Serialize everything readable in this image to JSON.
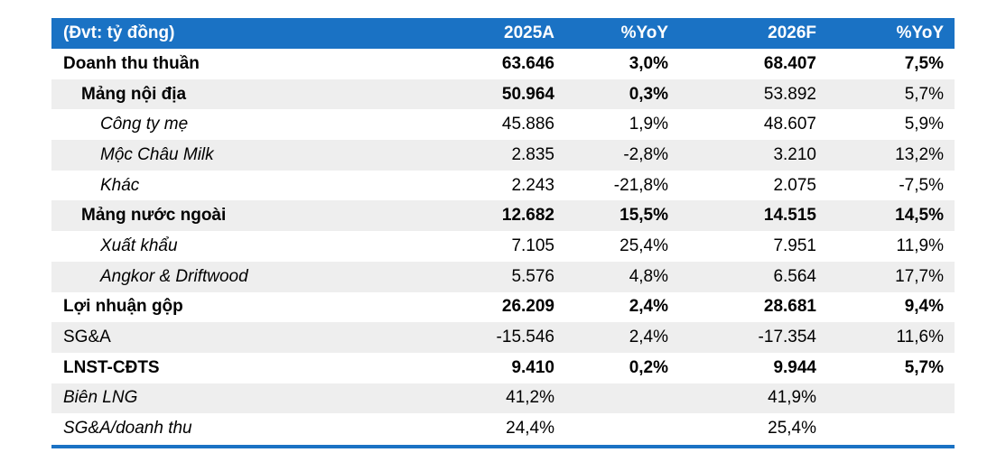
{
  "table": {
    "header": {
      "label": "(Đvt: tỷ đồng)",
      "col_2025": "2025A",
      "col_yoy1": "%YoY",
      "col_2026": "2026F",
      "col_yoy2": "%YoY"
    },
    "rows": [
      {
        "label": "Doanh thu thuần",
        "v2025": "63.646",
        "yoy1": "3,0%",
        "v2026": "68.407",
        "yoy2": "7,5%"
      },
      {
        "label": "Mảng nội địa",
        "v2025": "50.964",
        "yoy1": "0,3%",
        "v2026": "53.892",
        "yoy2": "5,7%"
      },
      {
        "label": "Công ty mẹ",
        "v2025": "45.886",
        "yoy1": "1,9%",
        "v2026": "48.607",
        "yoy2": "5,9%"
      },
      {
        "label": "Mộc Châu Milk",
        "v2025": "2.835",
        "yoy1": "-2,8%",
        "v2026": "3.210",
        "yoy2": "13,2%"
      },
      {
        "label": "Khác",
        "v2025": "2.243",
        "yoy1": "-21,8%",
        "v2026": "2.075",
        "yoy2": "-7,5%"
      },
      {
        "label": "Mảng nước ngoài",
        "v2025": "12.682",
        "yoy1": "15,5%",
        "v2026": "14.515",
        "yoy2": "14,5%"
      },
      {
        "label": "Xuất khẩu",
        "v2025": "7.105",
        "yoy1": "25,4%",
        "v2026": "7.951",
        "yoy2": "11,9%"
      },
      {
        "label": "Angkor & Driftwood",
        "v2025": "5.576",
        "yoy1": "4,8%",
        "v2026": "6.564",
        "yoy2": "17,7%"
      },
      {
        "label": "Lợi nhuận gộp",
        "v2025": "26.209",
        "yoy1": "2,4%",
        "v2026": "28.681",
        "yoy2": "9,4%"
      },
      {
        "label": "SG&A",
        "v2025": "-15.546",
        "yoy1": "2,4%",
        "v2026": "-17.354",
        "yoy2": "11,6%"
      },
      {
        "label": "LNST-CĐTS",
        "v2025": "9.410",
        "yoy1": "0,2%",
        "v2026": "9.944",
        "yoy2": "5,7%"
      },
      {
        "label": "Biên LNG",
        "v2025": "41,2%",
        "yoy1": "",
        "v2026": "41,9%",
        "yoy2": ""
      },
      {
        "label": "SG&A/doanh thu",
        "v2025": "24,4%",
        "yoy1": "",
        "v2026": "25,4%",
        "yoy2": ""
      }
    ]
  }
}
